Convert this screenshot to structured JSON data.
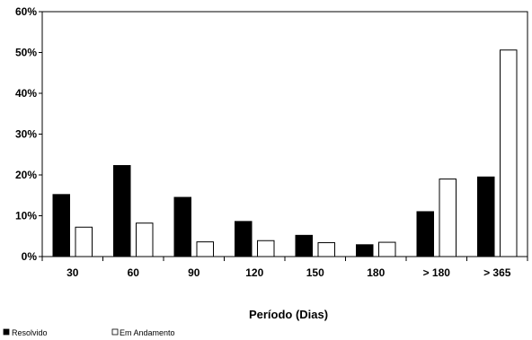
{
  "chart_data": {
    "type": "bar",
    "title": "",
    "xlabel": "Período (Dias)",
    "ylabel": "",
    "categories": [
      "30",
      "60",
      "90",
      "120",
      "150",
      "180",
      "> 180",
      "> 365"
    ],
    "series": [
      {
        "name": "Resolvido",
        "values": [
          15.2,
          22.3,
          14.5,
          8.6,
          5.2,
          2.9,
          11.0,
          19.5
        ]
      },
      {
        "name": "Em Andamento",
        "values": [
          7.2,
          8.2,
          3.6,
          3.9,
          3.4,
          3.5,
          19.0,
          50.6
        ]
      }
    ],
    "ylim": [
      0,
      60
    ],
    "yticks": [
      "0%",
      "10%",
      "20%",
      "30%",
      "40%",
      "50%",
      "60%"
    ],
    "grid": false,
    "legend_position": "bottom-left",
    "colors": {
      "Resolvido": "#000000",
      "Em Andamento": "#ffffff",
      "edge": "#000000"
    }
  }
}
